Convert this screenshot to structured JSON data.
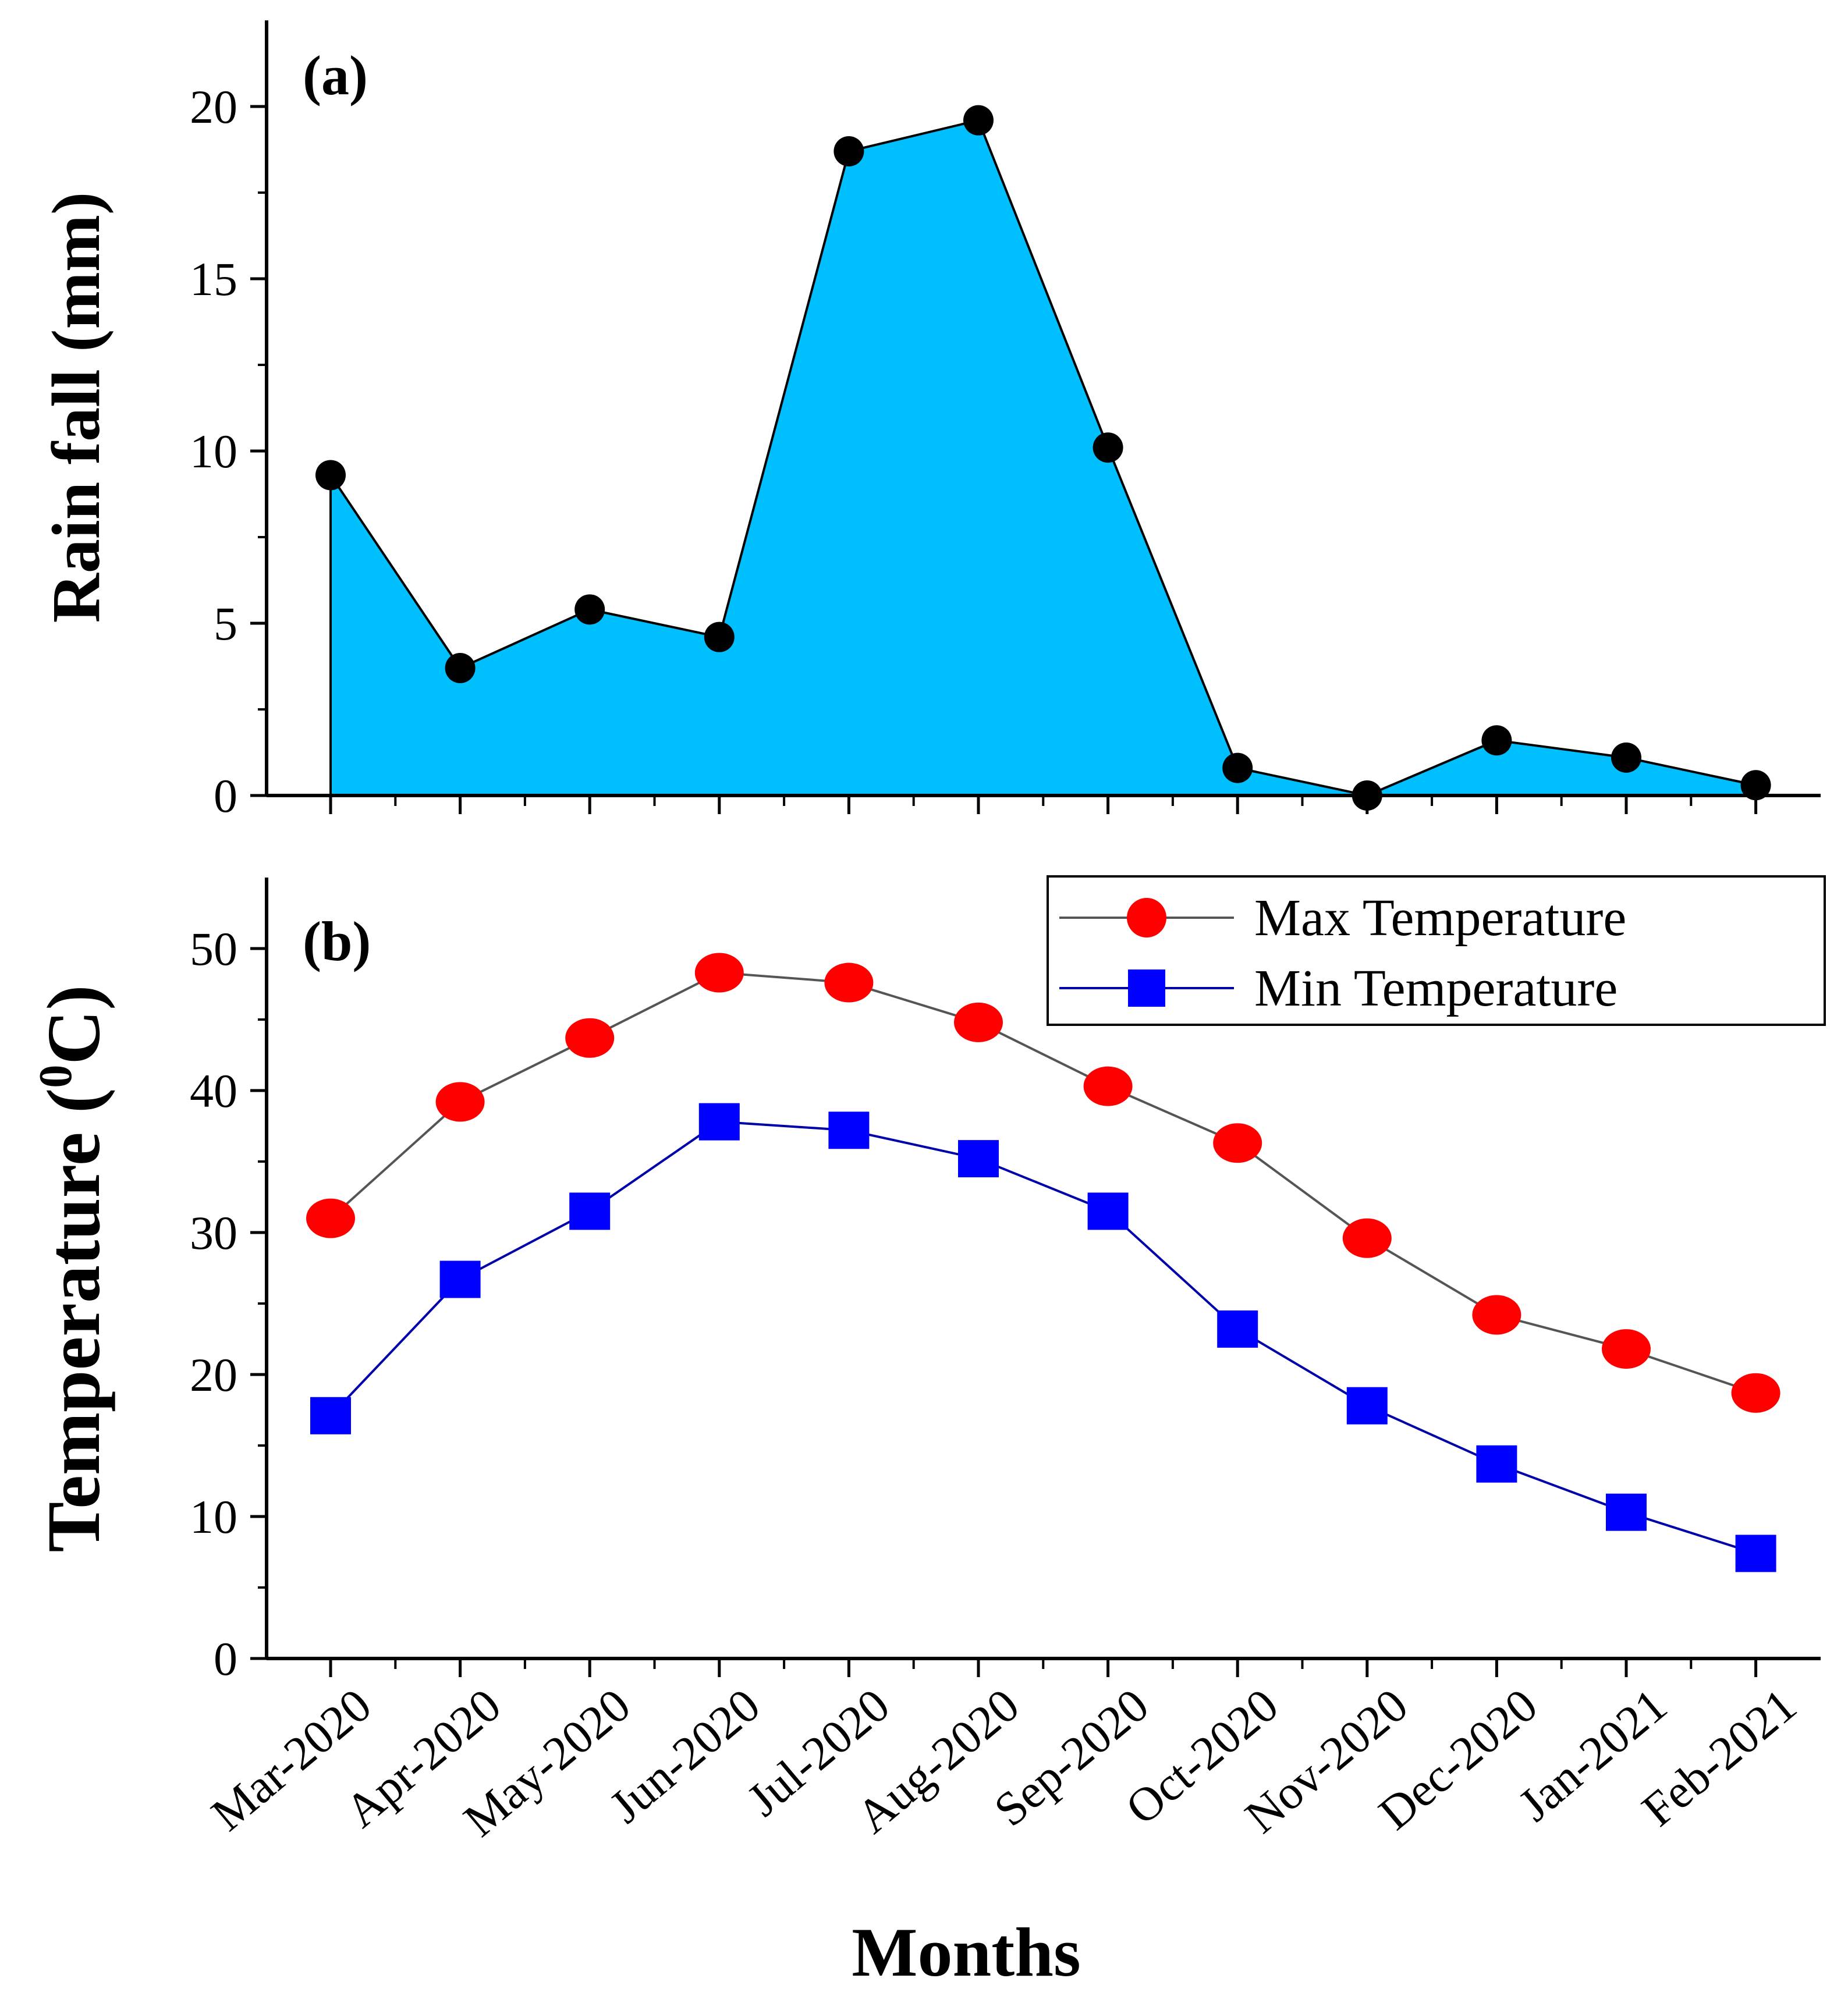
{
  "chart_data": [
    {
      "type": "area",
      "panel_label": "(a)",
      "ylabel": "Rain fall (mm)",
      "ylim": [
        0,
        22.5
      ],
      "yticks": [
        0,
        5,
        10,
        15,
        20
      ],
      "categories": [
        "Mar-2020",
        "Apr-2020",
        "May-2020",
        "Jun-2020",
        "Jul-2020",
        "Aug-2020",
        "Sep-2020",
        "Oct-2020",
        "Nov-2020",
        "Dec-2020",
        "Jan-2021",
        "Feb-2021"
      ],
      "series": [
        {
          "values": [
            9.3,
            3.7,
            5.4,
            4.6,
            18.7,
            19.6,
            10.1,
            0.8,
            0.0,
            1.6,
            1.1,
            0.3
          ],
          "fill_color": "#00bfff",
          "line_color": "#000000",
          "marker_color": "#000000"
        }
      ],
      "grid": false
    },
    {
      "type": "line",
      "panel_label": "(b)",
      "ylabel": "Temperature (",
      "ylabel_sup": "0",
      "ylabel_end": "C)",
      "xlabel": "Months",
      "ylim": [
        0,
        55
      ],
      "yticks": [
        0,
        10,
        20,
        30,
        40,
        50
      ],
      "categories": [
        "Mar-2020",
        "Apr-2020",
        "May-2020",
        "Jun-2020",
        "Jul-2020",
        "Aug-2020",
        "Sep-2020",
        "Oct-2020",
        "Nov-2020",
        "Dec-2020",
        "Jan-2021",
        "Feb-2021"
      ],
      "series": [
        {
          "name": "Max Temperature",
          "values": [
            31.0,
            39.2,
            43.7,
            48.3,
            47.6,
            44.8,
            40.3,
            36.3,
            29.6,
            24.2,
            21.8,
            18.7
          ],
          "marker": "circle",
          "marker_color": "#ff0000",
          "line_color": "#555555"
        },
        {
          "name": "Min Temperature",
          "values": [
            17.1,
            26.7,
            31.5,
            37.8,
            37.2,
            35.2,
            31.5,
            23.2,
            17.8,
            13.7,
            10.3,
            7.4
          ],
          "marker": "square",
          "marker_color": "#0000ff",
          "line_color": "#0000aa"
        }
      ],
      "legend": "top-right",
      "grid": false
    }
  ]
}
